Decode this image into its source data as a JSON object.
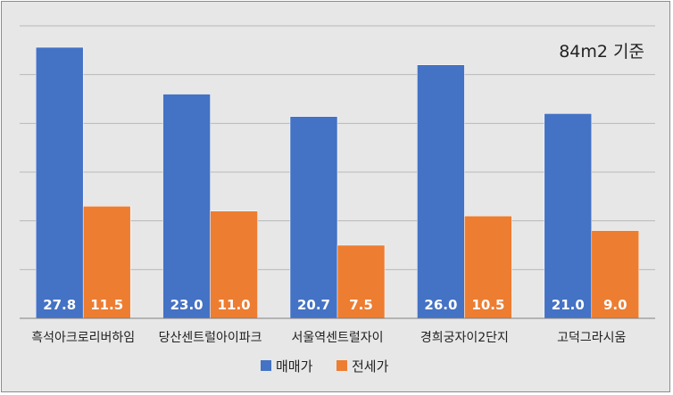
{
  "chart_data": {
    "type": "bar",
    "title": "",
    "annotation": "84m2 기준",
    "categories": [
      "흑석아크로리버하임",
      "당산센트럴아이파크",
      "서울역센트럴자이",
      "경희궁자이2단지",
      "고덕그라시움"
    ],
    "series": [
      {
        "name": "매매가",
        "values": [
          27.8,
          23.0,
          20.7,
          26.0,
          21.0
        ],
        "labels": [
          "27.8",
          "23.0",
          "20.7",
          "26.0",
          "21.0"
        ],
        "color": "#4472c4"
      },
      {
        "name": "전세가",
        "values": [
          11.5,
          11.0,
          7.5,
          10.5,
          9.0
        ],
        "labels": [
          "11.5",
          "11.0",
          "7.5",
          "10.5",
          "9.0"
        ],
        "color": "#ed7d31"
      }
    ],
    "ylim": [
      0,
      30
    ],
    "grid": true,
    "legend_position": "bottom",
    "xlabel": "",
    "ylabel": ""
  }
}
